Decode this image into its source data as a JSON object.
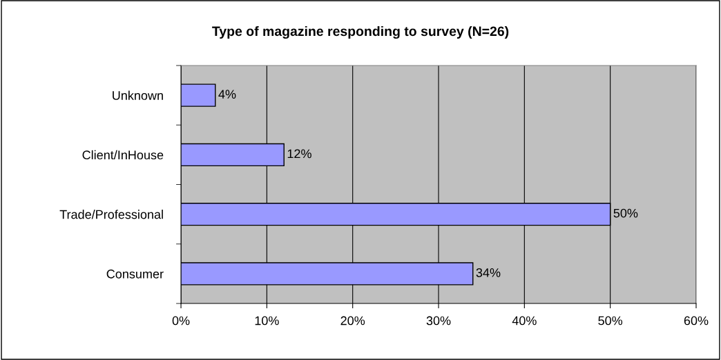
{
  "chart_data": {
    "type": "bar",
    "orientation": "horizontal",
    "title": "Type of magazine responding to survey (N=26)",
    "categories": [
      "Unknown",
      "Client/InHouse",
      "Trade/Professional",
      "Consumer"
    ],
    "values": [
      4,
      12,
      50,
      34
    ],
    "color": "#9999ff",
    "value_labels": [
      "4%",
      "12%",
      "50%",
      "34%"
    ],
    "xlim": [
      0,
      60
    ],
    "xticks": [
      {
        "value": 0,
        "label": "0%"
      },
      {
        "value": 10,
        "label": "10%"
      },
      {
        "value": 20,
        "label": "20%"
      },
      {
        "value": 30,
        "label": "30%"
      },
      {
        "value": 40,
        "label": "40%"
      },
      {
        "value": 50,
        "label": "50%"
      },
      {
        "value": 60,
        "label": "60%"
      }
    ],
    "grid": "x",
    "legend": false
  }
}
